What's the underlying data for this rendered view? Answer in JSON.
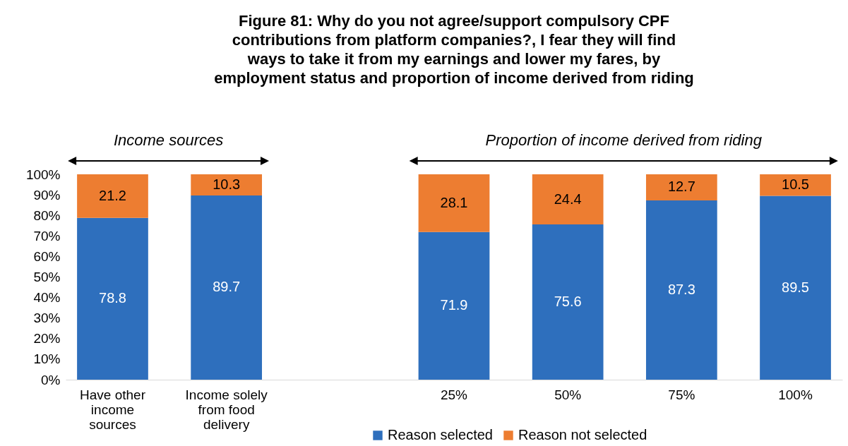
{
  "chart_data": {
    "type": "bar",
    "title": "Figure 81: Why do you not agree/support compulsory CPF contributions from platform companies?, I fear they will find ways to take it from my earnings and lower my fares, by employment status and proportion of income derived from riding",
    "categories": [
      "Have other income sources",
      "Income solely from food delivery",
      null,
      "25%",
      "50%",
      "75%",
      "100%"
    ],
    "series": [
      {
        "name": "Reason selected",
        "color": "#2e6fbd",
        "values": [
          78.8,
          89.7,
          null,
          71.9,
          75.6,
          87.3,
          89.5
        ]
      },
      {
        "name": "Reason not selected",
        "color": "#ed7d31",
        "values": [
          21.2,
          10.3,
          null,
          28.1,
          24.4,
          12.7,
          10.5
        ]
      }
    ],
    "stacked": true,
    "data_labels": true,
    "legend": "bottom",
    "grid": false,
    "ylim": [
      0,
      100
    ],
    "yticks": [
      {
        "value": 0,
        "label": "0%"
      },
      {
        "value": 10,
        "label": "10%"
      },
      {
        "value": 20,
        "label": "20%"
      },
      {
        "value": 30,
        "label": "30%"
      },
      {
        "value": 40,
        "label": "40%"
      },
      {
        "value": 50,
        "label": "50%"
      },
      {
        "value": 60,
        "label": "60%"
      },
      {
        "value": 70,
        "label": "70%"
      },
      {
        "value": 80,
        "label": "80%"
      },
      {
        "value": 90,
        "label": "90%"
      },
      {
        "value": 100,
        "label": "100%"
      }
    ],
    "annotations": [
      "Income sources",
      "Proportion of income derived from riding"
    ]
  }
}
